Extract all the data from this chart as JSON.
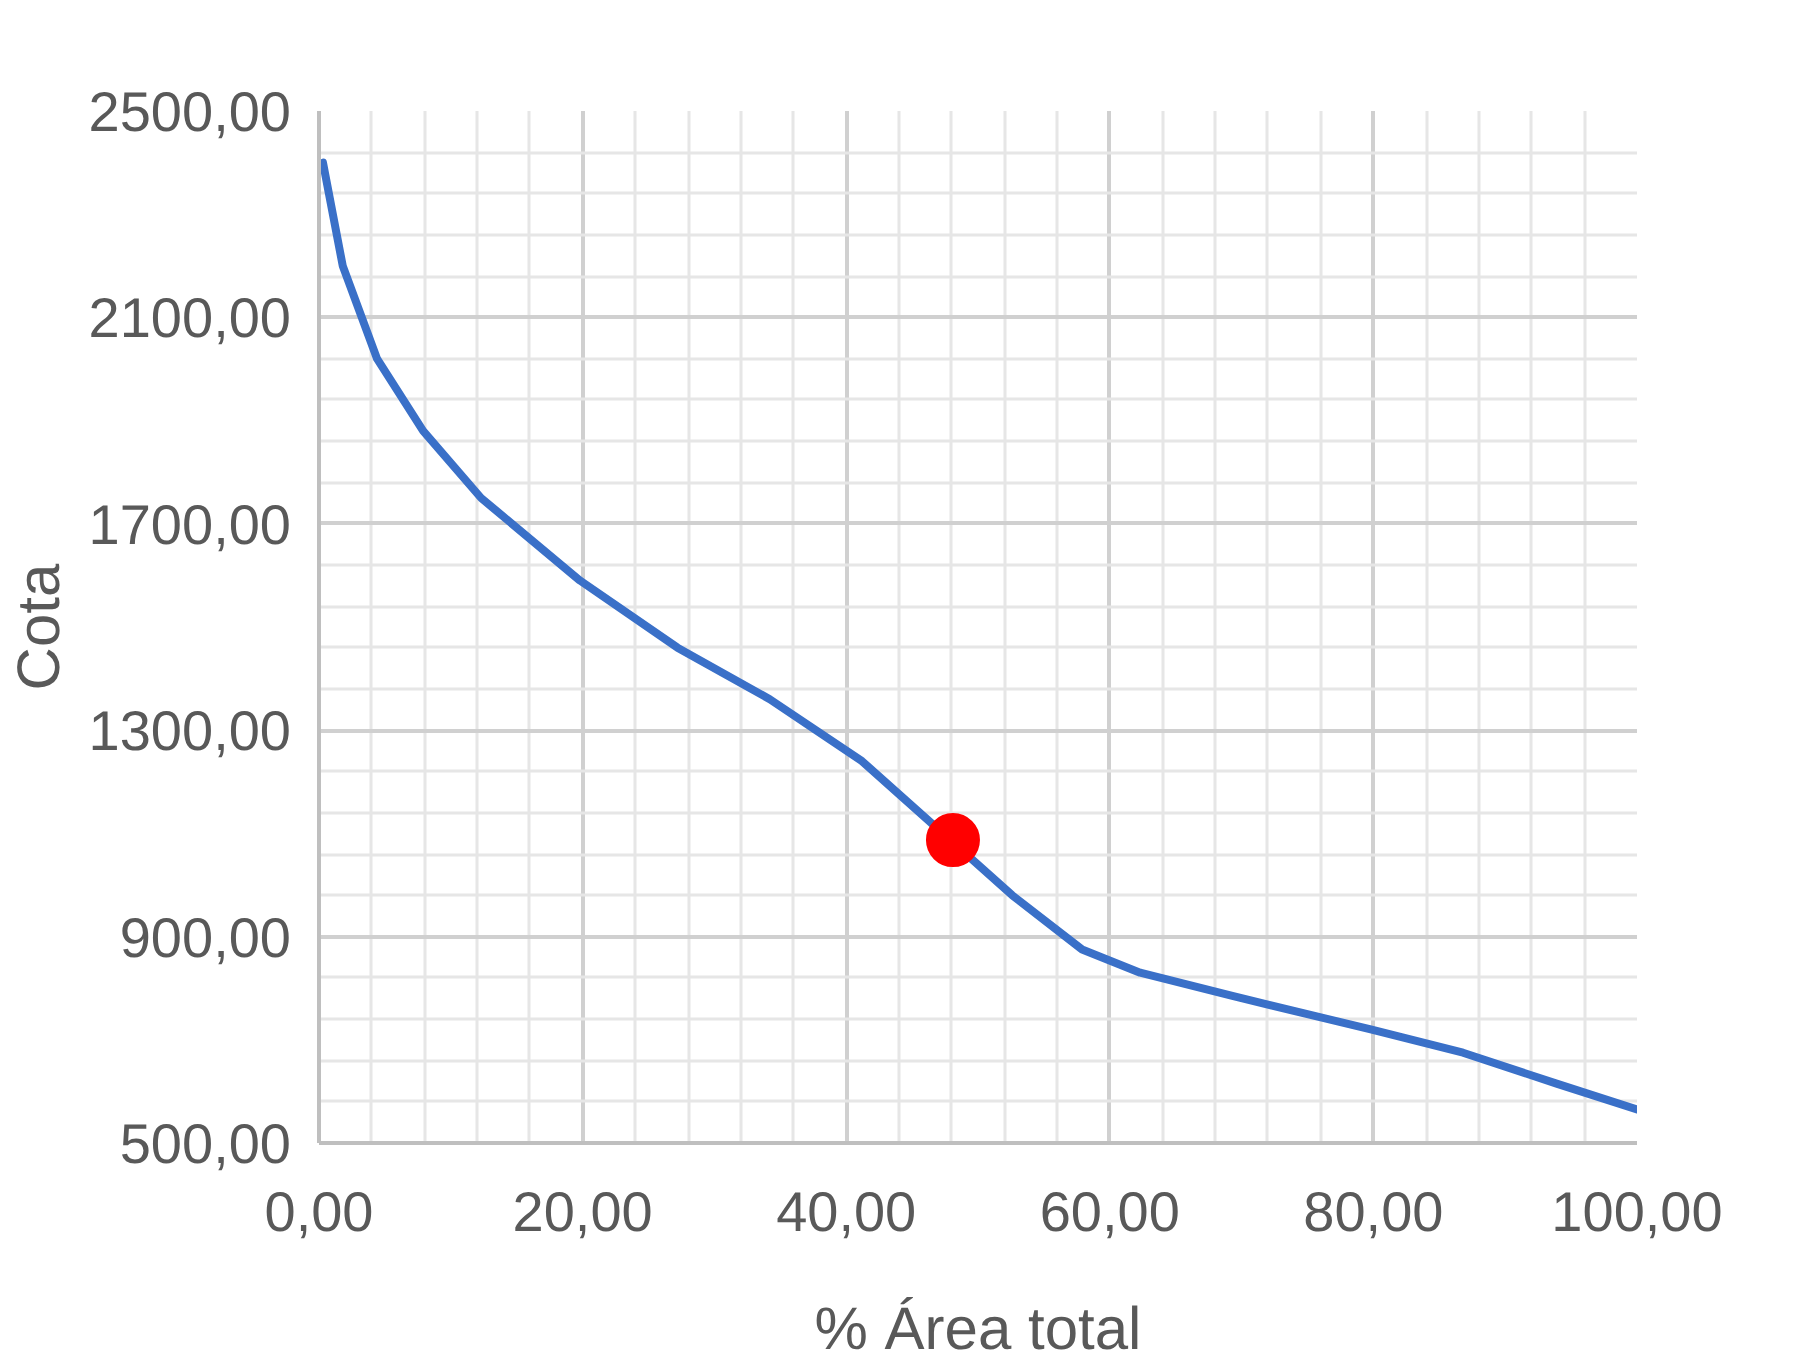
{
  "chart_data": {
    "type": "line",
    "xlabel": "% Área total",
    "ylabel": "Cota",
    "xlim": [
      0,
      100
    ],
    "ylim": [
      500,
      2500
    ],
    "xticks": [
      {
        "value": 0,
        "label": "0,00"
      },
      {
        "value": 20,
        "label": "20,00"
      },
      {
        "value": 40,
        "label": "40,00"
      },
      {
        "value": 60,
        "label": "60,00"
      },
      {
        "value": 80,
        "label": "80,00"
      },
      {
        "value": 100,
        "label": "100,00"
      }
    ],
    "yticks": [
      {
        "value": 500,
        "label": "500,00"
      },
      {
        "value": 900,
        "label": "900,00"
      },
      {
        "value": 1300,
        "label": "1300,00"
      },
      {
        "value": 1700,
        "label": "1700,00"
      },
      {
        "value": 2100,
        "label": "2100,00"
      },
      {
        "value": 2500,
        "label": "2500,00"
      }
    ],
    "grid": true,
    "series": [
      {
        "color": "#3a70c8",
        "x": [
          0.3,
          1.8,
          4.4,
          7.9,
          12.3,
          19.8,
          27.2,
          34.2,
          41.2,
          52.6,
          57.9,
          62.3,
          69.3,
          79.8,
          86.8,
          93.9,
          100
        ],
        "values": [
          2400,
          2200,
          2020,
          1880,
          1750,
          1590,
          1460,
          1360,
          1240,
          980,
          875,
          830,
          785,
          720,
          675,
          615,
          565
        ]
      },
      {
        "type": "scatter",
        "color": "#ff0000",
        "marker": "circle",
        "x": [
          48.1
        ],
        "values": [
          1087
        ]
      }
    ]
  }
}
